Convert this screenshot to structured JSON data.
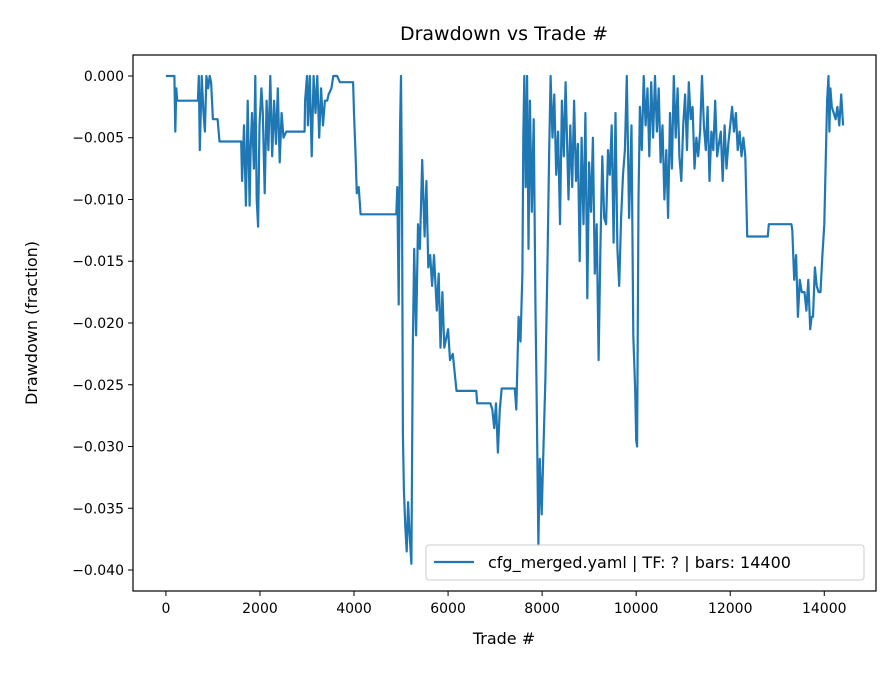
{
  "chart_data": {
    "type": "line",
    "title": "Drawdown vs Trade #",
    "xlabel": "Trade #",
    "ylabel": "Drawdown (fraction)",
    "xlim": [
      -700,
      15100
    ],
    "ylim": [
      -0.0417,
      0.0017
    ],
    "xticks": [
      0,
      2000,
      4000,
      6000,
      8000,
      10000,
      12000,
      14000
    ],
    "xtick_labels": [
      "0",
      "2000",
      "4000",
      "6000",
      "8000",
      "10000",
      "12000",
      "14000"
    ],
    "yticks": [
      0,
      -0.005,
      -0.01,
      -0.015,
      -0.02,
      -0.025,
      -0.03,
      -0.035,
      -0.04
    ],
    "ytick_labels": [
      "0.000",
      "−0.005",
      "−0.010",
      "−0.015",
      "−0.020",
      "−0.025",
      "−0.030",
      "−0.035",
      "−0.040"
    ],
    "grid": false,
    "legend_placement": "lower-right",
    "series": [
      {
        "name": "cfg_merged.yaml | TF: ? | bars: 14400",
        "color": "#1f77b4",
        "points": [
          [
            0,
            0
          ],
          [
            180,
            0
          ],
          [
            200,
            -0.0045
          ],
          [
            220,
            -0.001
          ],
          [
            240,
            -0.002
          ],
          [
            680,
            -0.002
          ],
          [
            700,
            0
          ],
          [
            720,
            -0.006
          ],
          [
            760,
            0
          ],
          [
            800,
            -0.003
          ],
          [
            830,
            -0.0045
          ],
          [
            860,
            0
          ],
          [
            900,
            -0.001
          ],
          [
            930,
            0
          ],
          [
            960,
            -0.0005
          ],
          [
            1000,
            -0.0035
          ],
          [
            1100,
            -0.0035
          ],
          [
            1140,
            -0.0053
          ],
          [
            1600,
            -0.0053
          ],
          [
            1620,
            -0.0085
          ],
          [
            1660,
            -0.004
          ],
          [
            1700,
            -0.0105
          ],
          [
            1740,
            -0.002
          ],
          [
            1780,
            -0.0105
          ],
          [
            1800,
            -0.006
          ],
          [
            1830,
            -0.003
          ],
          [
            1870,
            -0.0075
          ],
          [
            1900,
            0
          ],
          [
            1930,
            -0.01
          ],
          [
            1960,
            -0.0122
          ],
          [
            1990,
            -0.004
          ],
          [
            2030,
            -0.001
          ],
          [
            2060,
            -0.003
          ],
          [
            2100,
            -0.0095
          ],
          [
            2140,
            -0.002
          ],
          [
            2180,
            -0.006
          ],
          [
            2220,
            0
          ],
          [
            2260,
            -0.0065
          ],
          [
            2300,
            -0.002
          ],
          [
            2340,
            -0.0055
          ],
          [
            2380,
            -0.001
          ],
          [
            2420,
            -0.007
          ],
          [
            2460,
            -0.003
          ],
          [
            2500,
            -0.005
          ],
          [
            2560,
            -0.0045
          ],
          [
            2950,
            -0.0045
          ],
          [
            2960,
            -0.002
          ],
          [
            3000,
            0
          ],
          [
            3020,
            -0.004
          ],
          [
            3060,
            0
          ],
          [
            3100,
            -0.0065
          ],
          [
            3140,
            0
          ],
          [
            3180,
            -0.003
          ],
          [
            3220,
            0
          ],
          [
            3260,
            -0.005
          ],
          [
            3300,
            -0.001
          ],
          [
            3340,
            -0.004
          ],
          [
            3380,
            -0.002
          ],
          [
            3430,
            -0.002
          ],
          [
            3460,
            -0.0015
          ],
          [
            3520,
            -0.001
          ],
          [
            3560,
            0
          ],
          [
            3640,
            0
          ],
          [
            3700,
            -0.0005
          ],
          [
            3980,
            -0.0005
          ],
          [
            4000,
            -0.003
          ],
          [
            4030,
            -0.006
          ],
          [
            4060,
            -0.0095
          ],
          [
            4100,
            -0.009
          ],
          [
            4140,
            -0.0112
          ],
          [
            4900,
            -0.0112
          ],
          [
            4920,
            -0.009
          ],
          [
            4950,
            -0.0185
          ],
          [
            4980,
            -0.004
          ],
          [
            5000,
            0
          ],
          [
            5020,
            -0.0095
          ],
          [
            5040,
            -0.029
          ],
          [
            5060,
            -0.0335
          ],
          [
            5090,
            -0.0365
          ],
          [
            5120,
            -0.0385
          ],
          [
            5150,
            -0.0345
          ],
          [
            5180,
            -0.037
          ],
          [
            5220,
            -0.0395
          ],
          [
            5250,
            -0.022
          ],
          [
            5280,
            -0.014
          ],
          [
            5320,
            -0.021
          ],
          [
            5360,
            -0.012
          ],
          [
            5400,
            -0.014
          ],
          [
            5450,
            -0.0068
          ],
          [
            5500,
            -0.013
          ],
          [
            5540,
            -0.0085
          ],
          [
            5580,
            -0.0155
          ],
          [
            5620,
            -0.0145
          ],
          [
            5660,
            -0.017
          ],
          [
            5700,
            -0.0145
          ],
          [
            5760,
            -0.019
          ],
          [
            5800,
            -0.016
          ],
          [
            5840,
            -0.022
          ],
          [
            5880,
            -0.0175
          ],
          [
            5920,
            -0.022
          ],
          [
            6000,
            -0.0205
          ],
          [
            6040,
            -0.023
          ],
          [
            6100,
            -0.0225
          ],
          [
            6180,
            -0.0255
          ],
          [
            6600,
            -0.0255
          ],
          [
            6620,
            -0.0265
          ],
          [
            6900,
            -0.0265
          ],
          [
            6940,
            -0.027
          ],
          [
            6980,
            -0.0285
          ],
          [
            7020,
            -0.0265
          ],
          [
            7060,
            -0.0305
          ],
          [
            7100,
            -0.027
          ],
          [
            7140,
            -0.0253
          ],
          [
            7420,
            -0.0253
          ],
          [
            7450,
            -0.027
          ],
          [
            7500,
            -0.0195
          ],
          [
            7540,
            -0.0215
          ],
          [
            7580,
            -0.016
          ],
          [
            7600,
            -0.005
          ],
          [
            7620,
            0
          ],
          [
            7650,
            -0.009
          ],
          [
            7680,
            0
          ],
          [
            7710,
            -0.014
          ],
          [
            7740,
            -0.002
          ],
          [
            7780,
            -0.011
          ],
          [
            7820,
            -0.0035
          ],
          [
            7860,
            -0.019
          ],
          [
            7880,
            -0.025
          ],
          [
            7920,
            -0.038
          ],
          [
            7950,
            -0.031
          ],
          [
            7990,
            -0.0355
          ],
          [
            8030,
            -0.03
          ],
          [
            8070,
            -0.0245
          ],
          [
            8110,
            -0.016
          ],
          [
            8150,
            -0.006
          ],
          [
            8180,
            0
          ],
          [
            8220,
            -0.005
          ],
          [
            8260,
            -0.0015
          ],
          [
            8300,
            -0.008
          ],
          [
            8340,
            -0.0045
          ],
          [
            8380,
            -0.012
          ],
          [
            8420,
            -0.002
          ],
          [
            8460,
            -0.0065
          ],
          [
            8500,
            -0.0005
          ],
          [
            8560,
            -0.01
          ],
          [
            8600,
            -0.004
          ],
          [
            8640,
            -0.009
          ],
          [
            8680,
            -0.002
          ],
          [
            8720,
            -0.0085
          ],
          [
            8760,
            -0.0055
          ],
          [
            8800,
            -0.015
          ],
          [
            8840,
            -0.005
          ],
          [
            8880,
            -0.012
          ],
          [
            8920,
            -0.003
          ],
          [
            8960,
            -0.018
          ],
          [
            9000,
            -0.007
          ],
          [
            9040,
            -0.011
          ],
          [
            9080,
            -0.005
          ],
          [
            9120,
            -0.016
          ],
          [
            9160,
            -0.012
          ],
          [
            9200,
            -0.023
          ],
          [
            9240,
            -0.014
          ],
          [
            9280,
            -0.0065
          ],
          [
            9320,
            -0.0115
          ],
          [
            9360,
            -0.012
          ],
          [
            9400,
            -0.006
          ],
          [
            9440,
            -0.008
          ],
          [
            9480,
            -0.004
          ],
          [
            9520,
            -0.0135
          ],
          [
            9560,
            -0.003
          ],
          [
            9600,
            -0.014
          ],
          [
            9640,
            -0.017
          ],
          [
            9680,
            -0.0115
          ],
          [
            9720,
            -0.008
          ],
          [
            9760,
            -0.006
          ],
          [
            9800,
            0
          ],
          [
            9850,
            -0.0115
          ],
          [
            9900,
            -0.004
          ],
          [
            9940,
            -0.021
          ],
          [
            9980,
            -0.0255
          ],
          [
            10000,
            -0.0295
          ],
          [
            10020,
            -0.03
          ],
          [
            10050,
            -0.01
          ],
          [
            10080,
            -0.0025
          ],
          [
            10120,
            -0.006
          ],
          [
            10160,
            0
          ],
          [
            10200,
            -0.004
          ],
          [
            10240,
            -0.001
          ],
          [
            10280,
            -0.0065
          ],
          [
            10320,
            -0.0005
          ],
          [
            10360,
            -0.005
          ],
          [
            10400,
            0
          ],
          [
            10440,
            -0.0045
          ],
          [
            10480,
            -0.001
          ],
          [
            10520,
            -0.007
          ],
          [
            10560,
            -0.004
          ],
          [
            10600,
            -0.01
          ],
          [
            10640,
            -0.006
          ],
          [
            10680,
            -0.0115
          ],
          [
            10720,
            -0.003
          ],
          [
            10760,
            -0.0075
          ],
          [
            10800,
            0
          ],
          [
            10840,
            -0.005
          ],
          [
            10880,
            -0.001
          ],
          [
            10920,
            -0.0065
          ],
          [
            10960,
            -0.0085
          ],
          [
            11000,
            -0.004
          ],
          [
            11040,
            -0.0015
          ],
          [
            11080,
            -0.006
          ],
          [
            11120,
            -0.0005
          ],
          [
            11160,
            -0.0035
          ],
          [
            11200,
            -0.0025
          ],
          [
            11240,
            -0.0075
          ],
          [
            11280,
            -0.005
          ],
          [
            11320,
            -0.0065
          ],
          [
            11360,
            -0.0045
          ],
          [
            11400,
            0
          ],
          [
            11440,
            -0.004
          ],
          [
            11480,
            -0.006
          ],
          [
            11520,
            -0.0025
          ],
          [
            11560,
            -0.0085
          ],
          [
            11600,
            -0.0045
          ],
          [
            11640,
            -0.006
          ],
          [
            11680,
            -0.002
          ],
          [
            11720,
            -0.0065
          ],
          [
            11760,
            -0.0055
          ],
          [
            11800,
            -0.0045
          ],
          [
            11840,
            -0.0085
          ],
          [
            11880,
            -0.004
          ],
          [
            11920,
            -0.0075
          ],
          [
            11960,
            -0.0055
          ],
          [
            12000,
            -0.004
          ],
          [
            12040,
            -0.0025
          ],
          [
            12080,
            -0.0045
          ],
          [
            12120,
            -0.003
          ],
          [
            12160,
            -0.006
          ],
          [
            12200,
            -0.0045
          ],
          [
            12240,
            -0.0065
          ],
          [
            12280,
            -0.005
          ],
          [
            12320,
            -0.0065
          ],
          [
            12360,
            -0.013
          ],
          [
            12800,
            -0.013
          ],
          [
            12820,
            -0.012
          ],
          [
            13300,
            -0.012
          ],
          [
            13320,
            -0.0125
          ],
          [
            13360,
            -0.0165
          ],
          [
            13400,
            -0.0145
          ],
          [
            13440,
            -0.0195
          ],
          [
            13480,
            -0.0165
          ],
          [
            13520,
            -0.0175
          ],
          [
            13580,
            -0.0175
          ],
          [
            13620,
            -0.019
          ],
          [
            13660,
            -0.0165
          ],
          [
            13700,
            -0.0205
          ],
          [
            13730,
            -0.0195
          ],
          [
            13760,
            -0.0195
          ],
          [
            13800,
            -0.0155
          ],
          [
            13840,
            -0.017
          ],
          [
            13880,
            -0.0175
          ],
          [
            13920,
            -0.0175
          ],
          [
            13960,
            -0.0145
          ],
          [
            14000,
            -0.012
          ],
          [
            14030,
            -0.007
          ],
          [
            14060,
            -0.002
          ],
          [
            14090,
            0
          ],
          [
            14110,
            -0.0045
          ],
          [
            14130,
            -0.001
          ],
          [
            14160,
            -0.0025
          ],
          [
            14200,
            -0.003
          ],
          [
            14240,
            -0.0035
          ],
          [
            14280,
            -0.0025
          ],
          [
            14320,
            -0.004
          ],
          [
            14360,
            -0.0015
          ],
          [
            14400,
            -0.004
          ]
        ]
      }
    ]
  }
}
